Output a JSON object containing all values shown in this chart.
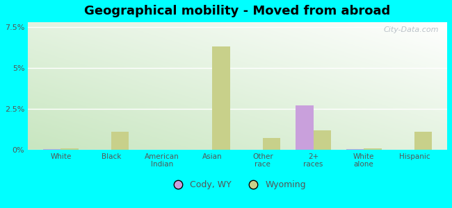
{
  "title": "Geographical mobility - Moved from abroad",
  "categories": [
    "White",
    "Black",
    "American\nIndian",
    "Asian",
    "Other\nrace",
    "2+\nraces",
    "White\nalone",
    "Hispanic"
  ],
  "cody_values": [
    0.05,
    0.0,
    0.0,
    0.0,
    0.0,
    2.7,
    0.05,
    0.0
  ],
  "wyoming_values": [
    0.1,
    1.1,
    0.0,
    6.3,
    0.7,
    1.2,
    0.1,
    1.1
  ],
  "cody_color": "#c9a0dc",
  "wyoming_color": "#c8d08a",
  "yticks": [
    0,
    2.5,
    5.0,
    7.5
  ],
  "ytick_labels": [
    "0%",
    "2.5%",
    "5%",
    "7.5%"
  ],
  "ylim": [
    0,
    7.8
  ],
  "bar_width": 0.35,
  "legend_labels": [
    "Cody, WY",
    "Wyoming"
  ],
  "watermark": "City-Data.com",
  "bg_color": "#00ffff",
  "grad_colors": [
    "#c8e6c0",
    "#ffffff"
  ],
  "title_fontsize": 13
}
